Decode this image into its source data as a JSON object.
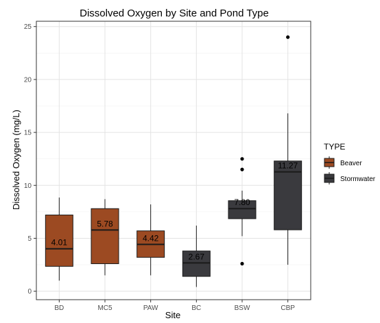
{
  "chart_data": {
    "type": "box",
    "title": "Dissolved Oxygen by Site and Pond Type",
    "xlabel": "Site",
    "ylabel": "Dissolved Oxygen (mg/L)",
    "ylim": [
      -0.8,
      25.5
    ],
    "yticks": [
      0,
      5,
      10,
      15,
      20,
      25
    ],
    "grid": true,
    "legend": {
      "title": "TYPE",
      "position": "right",
      "entries": [
        {
          "label": "Beaver",
          "color": "#9c4a22"
        },
        {
          "label": "Stormwater",
          "color": "#3a3a3e"
        }
      ]
    },
    "categories": [
      "BD",
      "MC5",
      "PAW",
      "BC",
      "BSW",
      "CBP"
    ],
    "boxes": [
      {
        "site": "BD",
        "type": "Beaver",
        "whisker_low": 1.0,
        "q1": 2.35,
        "median": 4.01,
        "q3": 7.2,
        "whisker_high": 8.85,
        "outliers": [],
        "median_label": "4.01"
      },
      {
        "site": "MC5",
        "type": "Beaver",
        "whisker_low": 1.5,
        "q1": 2.6,
        "median": 5.78,
        "q3": 7.8,
        "whisker_high": 8.7,
        "outliers": [],
        "median_label": "5.78"
      },
      {
        "site": "PAW",
        "type": "Beaver",
        "whisker_low": 1.5,
        "q1": 3.2,
        "median": 4.42,
        "q3": 5.7,
        "whisker_high": 8.2,
        "outliers": [],
        "median_label": "4.42"
      },
      {
        "site": "BC",
        "type": "Stormwater",
        "whisker_low": 0.4,
        "q1": 1.4,
        "median": 2.67,
        "q3": 3.8,
        "whisker_high": 6.2,
        "outliers": [],
        "median_label": "2.67"
      },
      {
        "site": "BSW",
        "type": "Stormwater",
        "whisker_low": 5.2,
        "q1": 6.85,
        "median": 7.8,
        "q3": 8.55,
        "whisker_high": 9.5,
        "outliers": [
          2.6,
          11.5,
          12.5
        ],
        "median_label": "7.80"
      },
      {
        "site": "CBP",
        "type": "Stormwater",
        "whisker_low": 2.5,
        "q1": 5.8,
        "median": 11.27,
        "q3": 12.3,
        "whisker_high": 16.8,
        "outliers": [
          24.0
        ],
        "median_label": "11.27"
      }
    ]
  }
}
